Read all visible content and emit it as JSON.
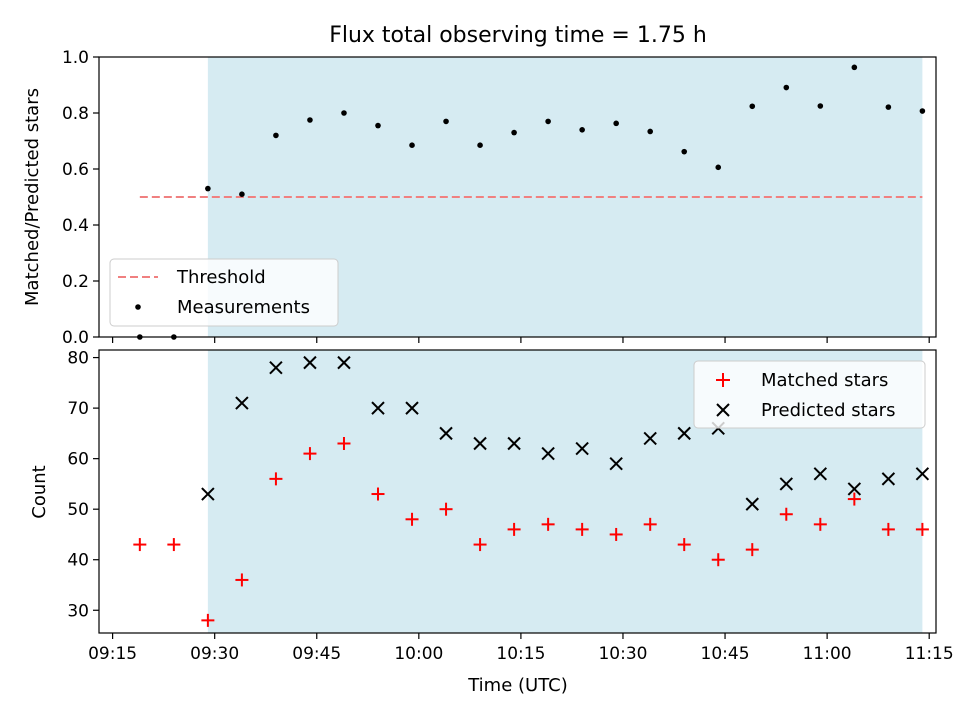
{
  "chart_data": [
    {
      "type": "scatter",
      "title": "Flux total observing time = 1.75 h",
      "ylabel": "Matched/Predicted stars",
      "xlabel": "",
      "ylim": [
        0,
        1.0
      ],
      "yticks": [
        "0.0",
        "0.2",
        "0.4",
        "0.6",
        "0.8",
        "1.0"
      ],
      "grid": false,
      "shaded_interval": [
        "09:29",
        "11:14"
      ],
      "shade_color": "#add8e6",
      "legend": {
        "placement": "lower-left",
        "entries": [
          {
            "label": "Threshold",
            "style": "dashed-line",
            "color": "#f08080"
          },
          {
            "label": "Measurements",
            "style": "dot",
            "color": "#000000"
          }
        ]
      },
      "threshold": {
        "name": "Threshold",
        "y": 0.5,
        "x_start": "09:19",
        "x_end": "11:14",
        "color": "#f08080"
      },
      "series": [
        {
          "name": "Measurements",
          "color": "#000000",
          "points": [
            [
              "09:19",
              0.0
            ],
            [
              "09:24",
              0.0
            ],
            [
              "09:29",
              0.53
            ],
            [
              "09:34",
              0.51
            ],
            [
              "09:39",
              0.72
            ],
            [
              "09:44",
              0.775
            ],
            [
              "09:49",
              0.8
            ],
            [
              "09:54",
              0.755
            ],
            [
              "09:59",
              0.685
            ],
            [
              "10:04",
              0.77
            ],
            [
              "10:09",
              0.685
            ],
            [
              "10:14",
              0.73
            ],
            [
              "10:19",
              0.77
            ],
            [
              "10:24",
              0.74
            ],
            [
              "10:29",
              0.763
            ],
            [
              "10:34",
              0.734
            ],
            [
              "10:39",
              0.662
            ],
            [
              "10:44",
              0.606
            ],
            [
              "10:49",
              0.824
            ],
            [
              "10:54",
              0.891
            ],
            [
              "10:59",
              0.825
            ],
            [
              "11:04",
              0.963
            ],
            [
              "11:09",
              0.821
            ],
            [
              "11:14",
              0.807
            ]
          ]
        }
      ]
    },
    {
      "type": "scatter",
      "title": "",
      "ylabel": "Count",
      "xlabel": "Time (UTC)",
      "xlim": [
        "09:13",
        "11:16"
      ],
      "xticks": [
        "09:15",
        "09:30",
        "09:45",
        "10:00",
        "10:15",
        "10:30",
        "10:45",
        "11:00",
        "11:15"
      ],
      "ylim": [
        25.5,
        81.5
      ],
      "yticks": [
        "30",
        "40",
        "50",
        "60",
        "70",
        "80"
      ],
      "grid": false,
      "shaded_interval": [
        "09:29",
        "11:14"
      ],
      "shade_color": "#add8e6",
      "legend": {
        "placement": "top-right",
        "entries": [
          {
            "label": "Matched stars",
            "style": "plus",
            "color": "#ff0000"
          },
          {
            "label": "Predicted stars",
            "style": "x",
            "color": "#000000"
          }
        ]
      },
      "series": [
        {
          "name": "Matched stars",
          "marker": "plus",
          "color": "#ff0000",
          "points": [
            [
              "09:19",
              43
            ],
            [
              "09:24",
              43
            ],
            [
              "09:29",
              28
            ],
            [
              "09:34",
              36
            ],
            [
              "09:39",
              56
            ],
            [
              "09:44",
              61
            ],
            [
              "09:49",
              63
            ],
            [
              "09:54",
              53
            ],
            [
              "09:59",
              48
            ],
            [
              "10:04",
              50
            ],
            [
              "10:09",
              43
            ],
            [
              "10:14",
              46
            ],
            [
              "10:19",
              47
            ],
            [
              "10:24",
              46
            ],
            [
              "10:29",
              45
            ],
            [
              "10:34",
              47
            ],
            [
              "10:39",
              43
            ],
            [
              "10:44",
              40
            ],
            [
              "10:49",
              42
            ],
            [
              "10:54",
              49
            ],
            [
              "10:59",
              47
            ],
            [
              "11:04",
              52
            ],
            [
              "11:09",
              46
            ],
            [
              "11:14",
              46
            ]
          ]
        },
        {
          "name": "Predicted stars",
          "marker": "x",
          "color": "#000000",
          "points": [
            [
              "09:29",
              53
            ],
            [
              "09:34",
              71
            ],
            [
              "09:39",
              78
            ],
            [
              "09:44",
              79
            ],
            [
              "09:49",
              79
            ],
            [
              "09:54",
              70
            ],
            [
              "09:59",
              70
            ],
            [
              "10:04",
              65
            ],
            [
              "10:09",
              63
            ],
            [
              "10:14",
              63
            ],
            [
              "10:19",
              61
            ],
            [
              "10:24",
              62
            ],
            [
              "10:29",
              59
            ],
            [
              "10:34",
              64
            ],
            [
              "10:39",
              65
            ],
            [
              "10:44",
              66
            ],
            [
              "10:49",
              51
            ],
            [
              "10:54",
              55
            ],
            [
              "10:59",
              57
            ],
            [
              "11:04",
              54
            ],
            [
              "11:09",
              56
            ],
            [
              "11:14",
              57
            ]
          ]
        }
      ]
    }
  ]
}
